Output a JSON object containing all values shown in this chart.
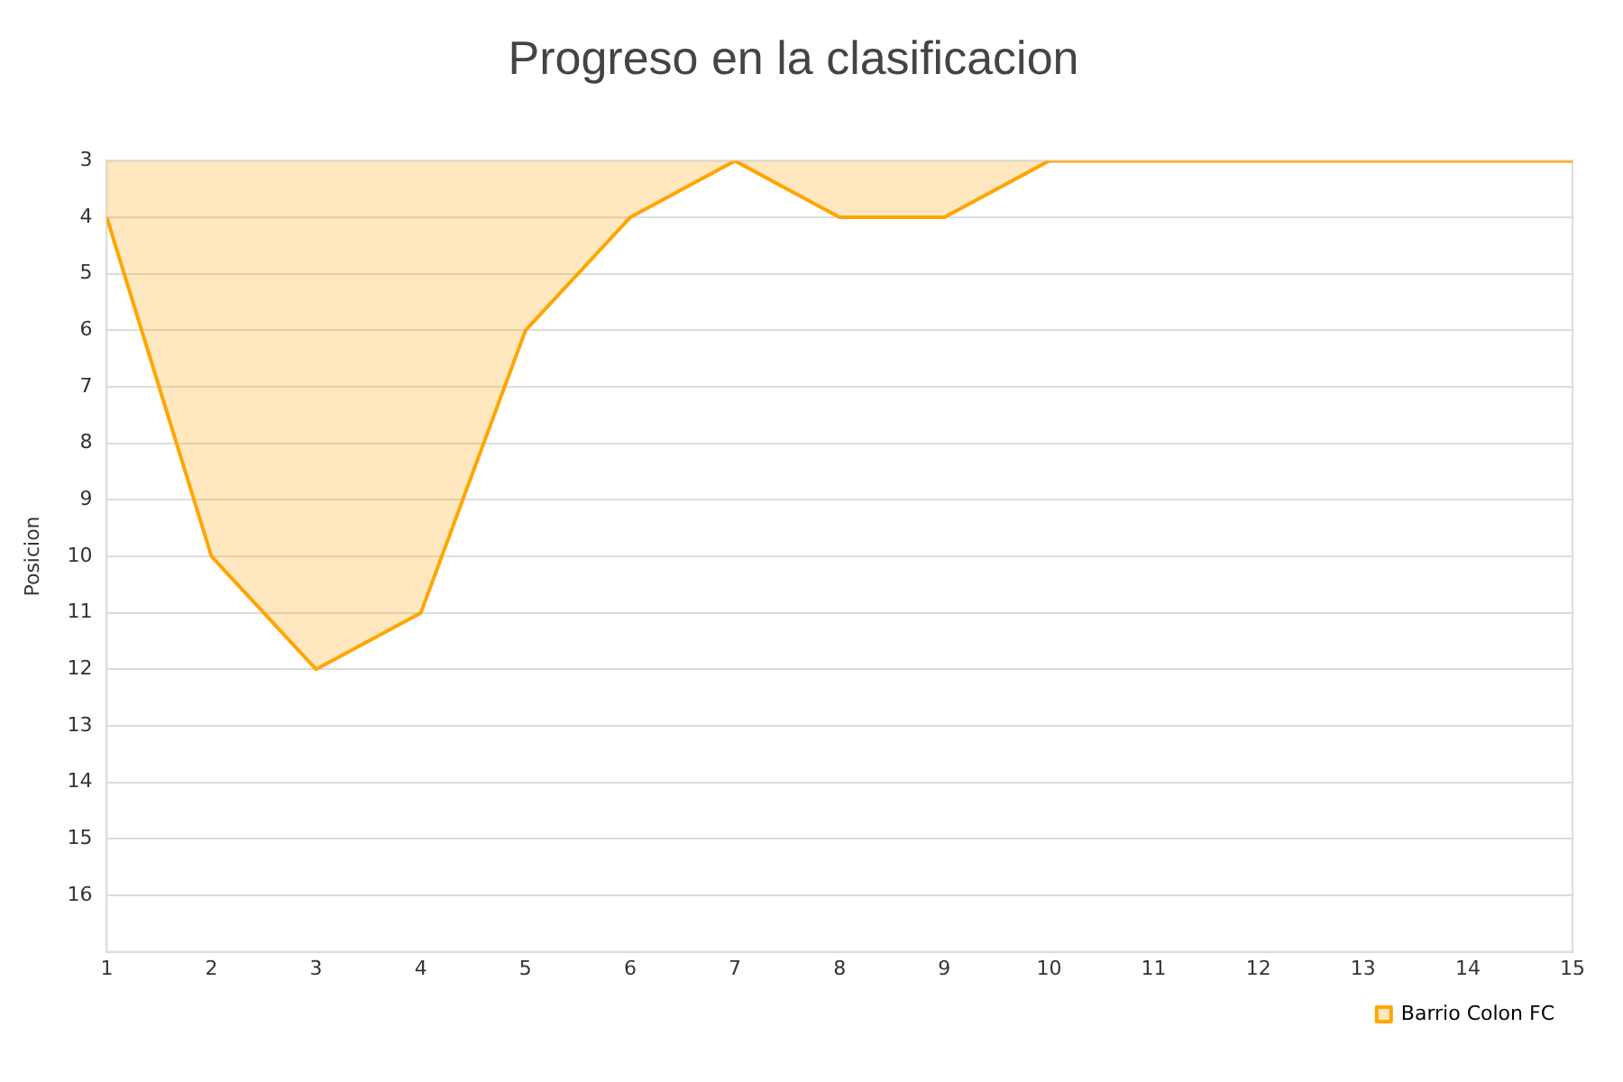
{
  "chart_data": {
    "type": "area",
    "title": "Progreso en la clasificacion",
    "ylabel": "Posicion",
    "x": [
      1,
      2,
      3,
      4,
      5,
      6,
      7,
      8,
      9,
      10,
      11,
      12,
      13,
      14,
      15
    ],
    "series": [
      {
        "name": "Barrio Colon FC",
        "color": "#ffa500",
        "values": [
          4,
          10,
          12,
          11,
          6,
          4,
          3,
          4,
          4,
          3,
          3,
          3,
          3,
          3,
          3
        ]
      }
    ],
    "xlim": [
      1,
      15
    ],
    "xticks": [
      1,
      2,
      3,
      4,
      5,
      6,
      7,
      8,
      9,
      10,
      11,
      12,
      13,
      14,
      15
    ],
    "ylim": [
      17,
      3
    ],
    "yticks": [
      3,
      4,
      5,
      6,
      7,
      8,
      9,
      10,
      11,
      12,
      13,
      14,
      15,
      16
    ],
    "grid": "y",
    "legend": "bottom right",
    "marker": "none",
    "line_style": "solid"
  }
}
